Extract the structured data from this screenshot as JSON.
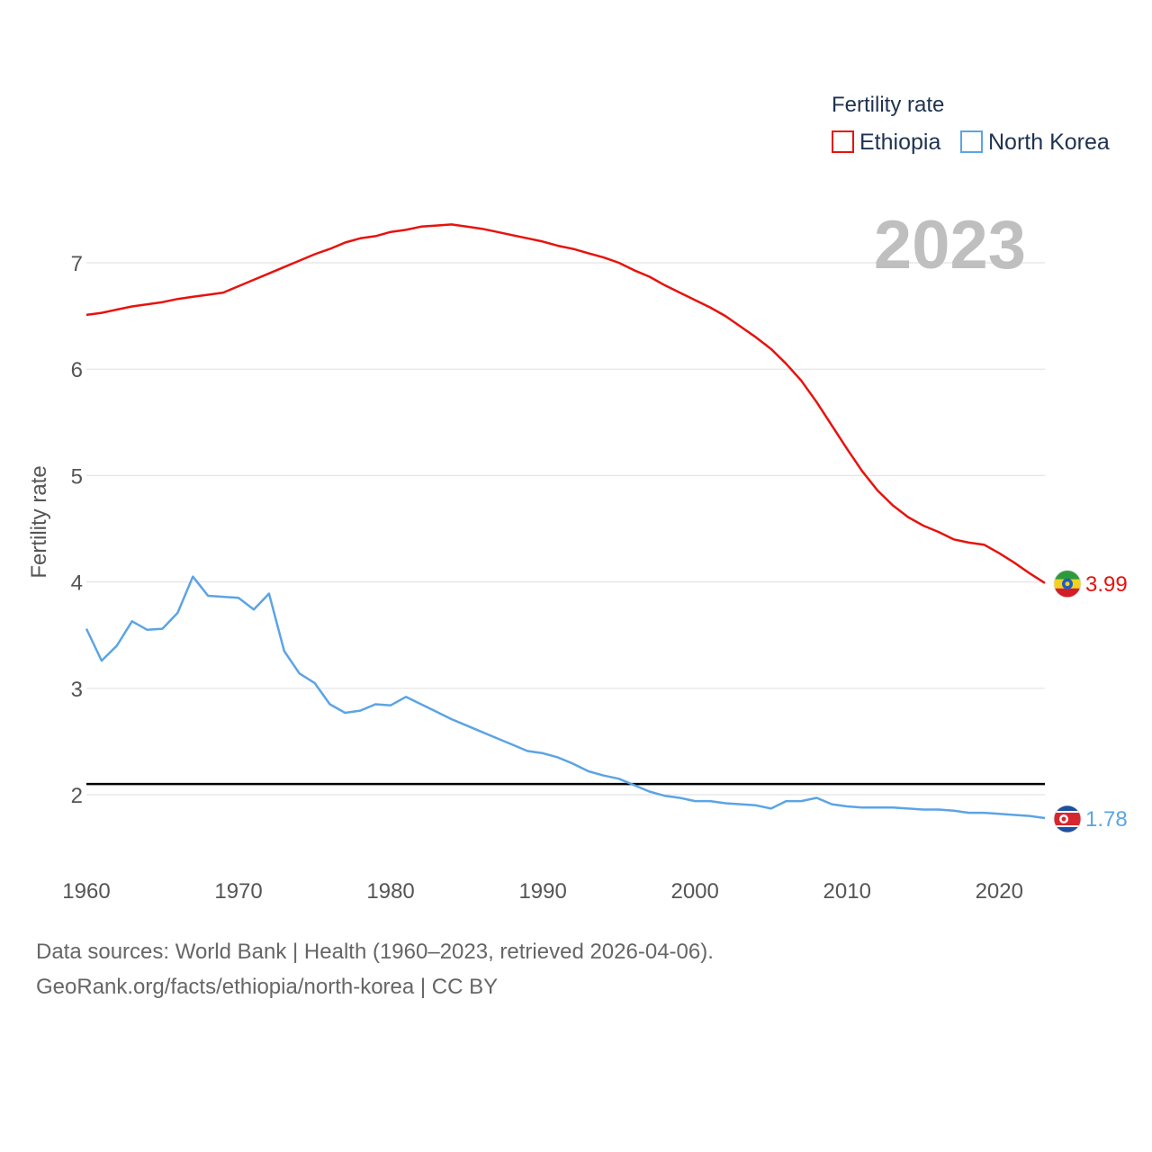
{
  "chart_data": {
    "type": "line",
    "ylabel": "Fertility rate",
    "legend_title": "Fertility rate",
    "legend_position": "top-right",
    "year_label": "2023",
    "x_ticks": [
      "1960",
      "1970",
      "1980",
      "1990",
      "2000",
      "2010",
      "2020"
    ],
    "y_ticks": [
      "2",
      "3",
      "4",
      "5",
      "6",
      "7"
    ],
    "xlim": [
      1960,
      2023
    ],
    "ylim": [
      1.5,
      7.5
    ],
    "grid": true,
    "reference_line": 2.1,
    "x": [
      1960,
      1961,
      1962,
      1963,
      1964,
      1965,
      1966,
      1967,
      1968,
      1969,
      1970,
      1971,
      1972,
      1973,
      1974,
      1975,
      1976,
      1977,
      1978,
      1979,
      1980,
      1981,
      1982,
      1983,
      1984,
      1985,
      1986,
      1987,
      1988,
      1989,
      1990,
      1991,
      1992,
      1993,
      1994,
      1995,
      1996,
      1997,
      1998,
      1999,
      2000,
      2001,
      2002,
      2003,
      2004,
      2005,
      2006,
      2007,
      2008,
      2009,
      2010,
      2011,
      2012,
      2013,
      2014,
      2015,
      2016,
      2017,
      2018,
      2019,
      2020,
      2021,
      2022,
      2023
    ],
    "series": [
      {
        "name": "Ethiopia",
        "color": "#e8120c",
        "end_label": "3.99",
        "values": [
          6.51,
          6.53,
          6.56,
          6.59,
          6.61,
          6.63,
          6.66,
          6.68,
          6.7,
          6.72,
          6.78,
          6.84,
          6.9,
          6.96,
          7.02,
          7.08,
          7.13,
          7.19,
          7.23,
          7.25,
          7.29,
          7.31,
          7.34,
          7.35,
          7.36,
          7.34,
          7.32,
          7.29,
          7.26,
          7.23,
          7.2,
          7.16,
          7.13,
          7.09,
          7.05,
          7.0,
          6.93,
          6.87,
          6.79,
          6.72,
          6.65,
          6.58,
          6.5,
          6.4,
          6.3,
          6.19,
          6.05,
          5.89,
          5.69,
          5.47,
          5.25,
          5.04,
          4.86,
          4.72,
          4.61,
          4.53,
          4.47,
          4.4,
          4.37,
          4.35,
          4.27,
          4.18,
          4.08,
          3.99
        ]
      },
      {
        "name": "North Korea",
        "color": "#5ba4e5",
        "end_label": "1.78",
        "values": [
          3.56,
          3.26,
          3.4,
          3.63,
          3.55,
          3.56,
          3.71,
          4.05,
          3.87,
          3.86,
          3.85,
          3.74,
          3.89,
          3.35,
          3.14,
          3.05,
          2.85,
          2.77,
          2.79,
          2.85,
          2.84,
          2.92,
          2.85,
          2.78,
          2.71,
          2.65,
          2.59,
          2.53,
          2.47,
          2.41,
          2.39,
          2.35,
          2.29,
          2.22,
          2.18,
          2.15,
          2.09,
          2.03,
          1.99,
          1.97,
          1.94,
          1.94,
          1.92,
          1.91,
          1.9,
          1.87,
          1.94,
          1.94,
          1.97,
          1.91,
          1.89,
          1.88,
          1.88,
          1.88,
          1.87,
          1.86,
          1.86,
          1.85,
          1.83,
          1.83,
          1.82,
          1.81,
          1.8,
          1.78
        ]
      }
    ]
  },
  "footer": {
    "sources": "Data sources: World Bank | Health (1960–2023, retrieved 2026-04-06).",
    "attribution": "GeoRank.org/facts/ethiopia/north-korea | CC BY"
  }
}
